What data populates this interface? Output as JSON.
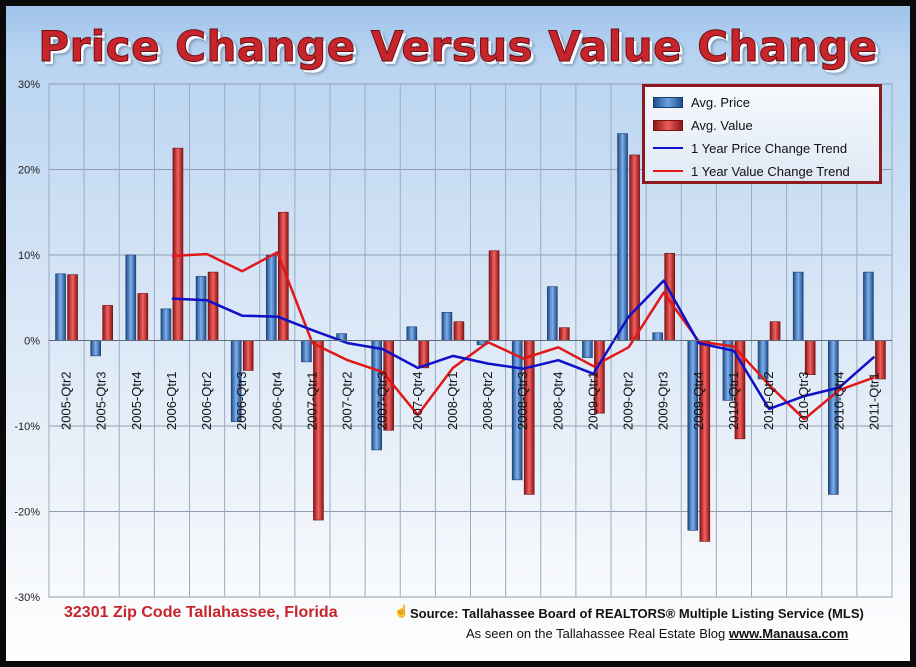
{
  "title": "Price Change Versus Value Change",
  "footer": {
    "zip": "32301 Zip Code Tallahassee, Florida",
    "hand_icon": "hand-pointer-icon",
    "source": "Source: Tallahassee Board of REALTORS® Multiple Listing Service (MLS)",
    "seen_prefix": "As seen on the Tallahassee Real Estate Blog",
    "site": "www.Manausa.com"
  },
  "colors": {
    "price": "#2e66ad",
    "value": "#c62b2b",
    "price_trend": "#1010c8",
    "value_trend": "#e01818",
    "title": "#c8242b"
  },
  "chart_data": {
    "type": "bar",
    "title": "Price Change Versus Value Change",
    "categories": [
      "2005-Qtr2",
      "2005-Qtr3",
      "2005-Qtr4",
      "2006-Qtr1",
      "2006-Qtr2",
      "2006-Qtr3",
      "2006-Qtr4",
      "2007-Qtr1",
      "2007-Qtr2",
      "2007-Qtr3",
      "2007-Qtr4",
      "2008-Qtr1",
      "2008-Qtr2",
      "2008-Qtr3",
      "2008-Qtr4",
      "2009-Qtr1",
      "2009-Qtr2",
      "2009-Qtr3",
      "2009-Qtr4",
      "2010-Qtr1",
      "2010-Qtr2",
      "2010-Qtr3",
      "2010-Qtr4",
      "2011-Qtr1"
    ],
    "y_ticks": [
      "30%",
      "20%",
      "10%",
      "0%",
      "-10%",
      "-20%",
      "-30%"
    ],
    "ylim": [
      -30,
      30
    ],
    "grid": true,
    "legend_position": "top-right",
    "series": [
      {
        "name": "Avg. Price",
        "kind": "bar",
        "values": [
          7.8,
          -1.8,
          10.0,
          3.7,
          7.5,
          -9.5,
          10.0,
          -2.5,
          0.8,
          -12.8,
          1.6,
          3.3,
          -0.5,
          -16.3,
          6.3,
          -2.0,
          24.2,
          0.9,
          -22.2,
          -7.0,
          -4.5,
          8.0,
          -18.0,
          8.0
        ]
      },
      {
        "name": "Avg. Value",
        "kind": "bar",
        "values": [
          7.7,
          4.1,
          5.5,
          22.5,
          8.0,
          -3.5,
          15.0,
          -21.0,
          0.0,
          -10.5,
          -3.2,
          2.2,
          10.5,
          -18.0,
          1.5,
          -8.5,
          21.7,
          10.2,
          -23.5,
          -11.5,
          2.2,
          -4.0,
          0.0,
          -4.5
        ]
      },
      {
        "name": "1 Year Price Change Trend",
        "kind": "line",
        "values": [
          null,
          null,
          null,
          4.9,
          4.7,
          2.9,
          2.8,
          1.2,
          -0.3,
          -1.0,
          -3.2,
          -1.8,
          -2.7,
          -3.3,
          -2.3,
          -3.9,
          2.8,
          7.0,
          -0.3,
          -1.2,
          -8.0,
          -6.5,
          -5.5,
          -1.9
        ]
      },
      {
        "name": "1 Year Value Change Trend",
        "kind": "line",
        "values": [
          null,
          null,
          null,
          9.9,
          10.1,
          8.1,
          10.3,
          -0.3,
          -2.3,
          -3.7,
          -8.7,
          -3.2,
          -0.2,
          -2.1,
          -0.8,
          -3.0,
          -0.8,
          5.6,
          -0.1,
          -0.7,
          -5.2,
          -9.2,
          -5.8,
          -4.3
        ]
      }
    ]
  }
}
